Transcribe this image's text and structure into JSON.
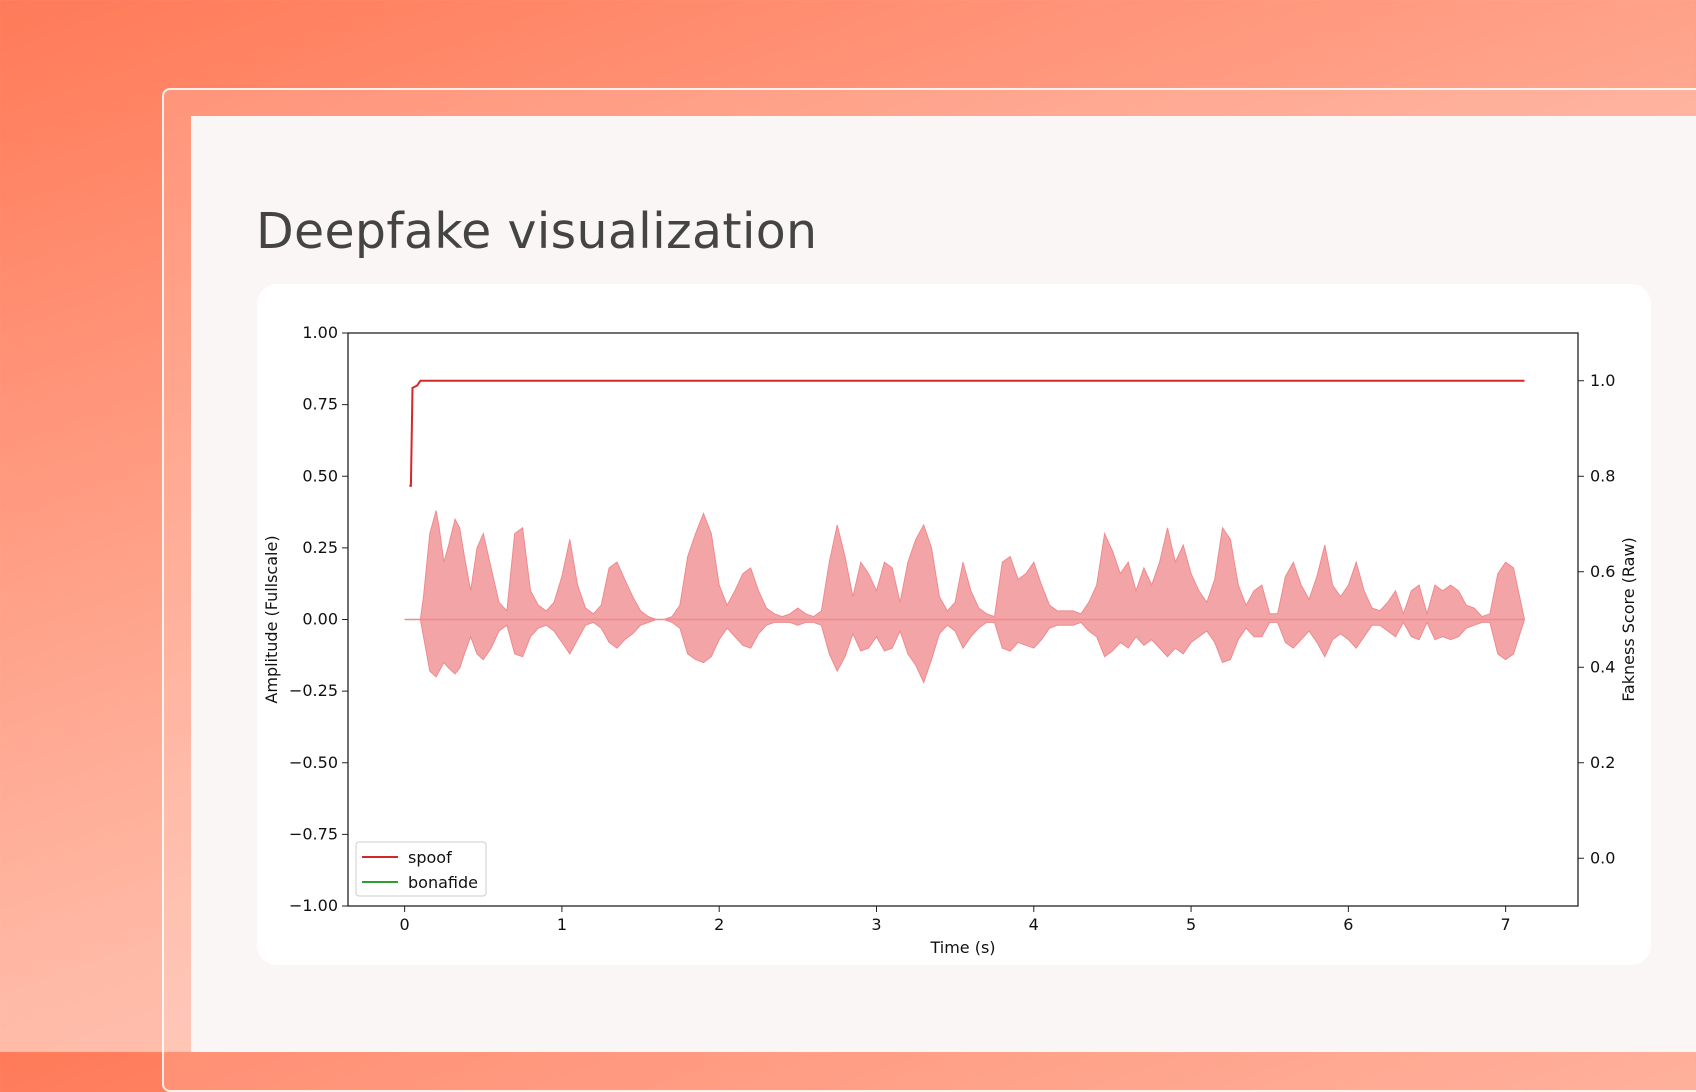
{
  "page": {
    "title": "Deepfake visualization"
  },
  "colors": {
    "spoof": "#d62728",
    "bonafide": "#2ca02c",
    "waveform": "#ef8a8e"
  },
  "chart_data": {
    "type": "line",
    "title": "",
    "xlabel": "Time (s)",
    "ylabel_left": "Amplitude (Fullscale)",
    "ylabel_right": "Fakness Score (Raw)",
    "xlim": [
      -0.36,
      7.46
    ],
    "ylim_left": [
      -1.0,
      1.0
    ],
    "ylim_right": [
      -0.1,
      1.1
    ],
    "x_ticks": [
      "0",
      "1",
      "2",
      "3",
      "4",
      "5",
      "6",
      "7"
    ],
    "y_left_ticks": [
      "1.00",
      "0.75",
      "0.50",
      "0.25",
      "0.00",
      "−0.25",
      "−0.50",
      "−0.75",
      "−1.00"
    ],
    "y_right_ticks": [
      "0.0",
      "0.2",
      "0.4",
      "0.6",
      "0.8",
      "1.0"
    ],
    "legend": {
      "position": "lower left",
      "entries": [
        "spoof",
        "bonafide"
      ]
    },
    "series": [
      {
        "name": "spoof",
        "axis": "right",
        "x": [
          0.03,
          0.04,
          0.05,
          0.08,
          0.1,
          1.0,
          2.0,
          3.0,
          4.0,
          5.0,
          6.0,
          7.0,
          7.12
        ],
        "values": [
          0.78,
          0.78,
          0.985,
          0.99,
          1.0,
          1.0,
          1.0,
          1.0,
          1.0,
          1.0,
          1.0,
          1.0,
          1.0
        ]
      },
      {
        "name": "bonafide",
        "axis": "right",
        "x": [],
        "values": []
      },
      {
        "name": "waveform",
        "axis": "left",
        "envelope_x": [
          0.0,
          0.1,
          0.12,
          0.16,
          0.2,
          0.22,
          0.25,
          0.28,
          0.32,
          0.35,
          0.38,
          0.42,
          0.46,
          0.5,
          0.55,
          0.6,
          0.65,
          0.7,
          0.75,
          0.8,
          0.85,
          0.9,
          0.95,
          1.0,
          1.05,
          1.1,
          1.15,
          1.2,
          1.25,
          1.3,
          1.35,
          1.4,
          1.45,
          1.5,
          1.55,
          1.6,
          1.65,
          1.7,
          1.75,
          1.8,
          1.85,
          1.9,
          1.95,
          2.0,
          2.05,
          2.1,
          2.15,
          2.2,
          2.25,
          2.3,
          2.35,
          2.4,
          2.45,
          2.5,
          2.55,
          2.6,
          2.65,
          2.7,
          2.75,
          2.8,
          2.85,
          2.9,
          2.95,
          3.0,
          3.05,
          3.1,
          3.15,
          3.2,
          3.25,
          3.3,
          3.35,
          3.4,
          3.45,
          3.5,
          3.55,
          3.6,
          3.65,
          3.7,
          3.75,
          3.8,
          3.85,
          3.9,
          3.95,
          4.0,
          4.05,
          4.1,
          4.15,
          4.2,
          4.25,
          4.3,
          4.35,
          4.4,
          4.45,
          4.5,
          4.55,
          4.6,
          4.65,
          4.7,
          4.75,
          4.8,
          4.85,
          4.9,
          4.95,
          5.0,
          5.05,
          5.1,
          5.15,
          5.2,
          5.25,
          5.3,
          5.35,
          5.4,
          5.45,
          5.5,
          5.55,
          5.6,
          5.65,
          5.7,
          5.75,
          5.8,
          5.85,
          5.9,
          5.95,
          6.0,
          6.05,
          6.1,
          6.15,
          6.2,
          6.25,
          6.3,
          6.35,
          6.4,
          6.45,
          6.5,
          6.55,
          6.6,
          6.65,
          6.7,
          6.75,
          6.8,
          6.85,
          6.9,
          6.95,
          7.0,
          7.05,
          7.12
        ],
        "envelope_top": [
          0.0,
          0.0,
          0.08,
          0.3,
          0.38,
          0.32,
          0.2,
          0.26,
          0.35,
          0.32,
          0.22,
          0.1,
          0.25,
          0.3,
          0.18,
          0.06,
          0.03,
          0.3,
          0.32,
          0.1,
          0.05,
          0.03,
          0.06,
          0.15,
          0.28,
          0.12,
          0.04,
          0.02,
          0.05,
          0.18,
          0.2,
          0.14,
          0.08,
          0.03,
          0.01,
          0.0,
          0.0,
          0.01,
          0.05,
          0.22,
          0.3,
          0.37,
          0.3,
          0.12,
          0.05,
          0.1,
          0.16,
          0.18,
          0.1,
          0.04,
          0.02,
          0.01,
          0.02,
          0.04,
          0.02,
          0.01,
          0.03,
          0.2,
          0.33,
          0.22,
          0.08,
          0.2,
          0.16,
          0.1,
          0.2,
          0.18,
          0.06,
          0.2,
          0.28,
          0.33,
          0.25,
          0.08,
          0.03,
          0.06,
          0.2,
          0.1,
          0.04,
          0.02,
          0.01,
          0.2,
          0.22,
          0.14,
          0.16,
          0.2,
          0.12,
          0.05,
          0.03,
          0.03,
          0.03,
          0.02,
          0.06,
          0.12,
          0.3,
          0.24,
          0.16,
          0.2,
          0.1,
          0.18,
          0.12,
          0.2,
          0.32,
          0.2,
          0.26,
          0.16,
          0.1,
          0.06,
          0.14,
          0.32,
          0.28,
          0.12,
          0.05,
          0.1,
          0.12,
          0.02,
          0.02,
          0.15,
          0.2,
          0.12,
          0.07,
          0.15,
          0.26,
          0.12,
          0.08,
          0.12,
          0.2,
          0.1,
          0.04,
          0.03,
          0.06,
          0.1,
          0.02,
          0.1,
          0.12,
          0.02,
          0.12,
          0.1,
          0.12,
          0.1,
          0.05,
          0.04,
          0.01,
          0.02,
          0.16,
          0.2,
          0.18,
          0.0
        ],
        "envelope_bottom": [
          0.0,
          0.0,
          -0.06,
          -0.18,
          -0.2,
          -0.18,
          -0.15,
          -0.17,
          -0.19,
          -0.17,
          -0.12,
          -0.06,
          -0.12,
          -0.14,
          -0.1,
          -0.04,
          -0.02,
          -0.12,
          -0.13,
          -0.06,
          -0.03,
          -0.02,
          -0.04,
          -0.08,
          -0.12,
          -0.07,
          -0.02,
          -0.01,
          -0.03,
          -0.08,
          -0.1,
          -0.07,
          -0.05,
          -0.02,
          -0.01,
          0.0,
          0.0,
          -0.01,
          -0.03,
          -0.12,
          -0.14,
          -0.15,
          -0.13,
          -0.07,
          -0.03,
          -0.06,
          -0.09,
          -0.1,
          -0.05,
          -0.02,
          -0.01,
          -0.01,
          -0.01,
          -0.02,
          -0.01,
          -0.01,
          -0.02,
          -0.12,
          -0.18,
          -0.13,
          -0.05,
          -0.11,
          -0.1,
          -0.06,
          -0.11,
          -0.1,
          -0.04,
          -0.12,
          -0.16,
          -0.22,
          -0.14,
          -0.05,
          -0.02,
          -0.04,
          -0.1,
          -0.06,
          -0.03,
          -0.01,
          -0.01,
          -0.1,
          -0.11,
          -0.08,
          -0.09,
          -0.1,
          -0.07,
          -0.03,
          -0.02,
          -0.02,
          -0.02,
          -0.01,
          -0.04,
          -0.06,
          -0.13,
          -0.11,
          -0.08,
          -0.1,
          -0.06,
          -0.09,
          -0.07,
          -0.1,
          -0.13,
          -0.1,
          -0.12,
          -0.08,
          -0.06,
          -0.04,
          -0.08,
          -0.15,
          -0.14,
          -0.07,
          -0.03,
          -0.06,
          -0.06,
          -0.01,
          -0.01,
          -0.08,
          -0.1,
          -0.07,
          -0.04,
          -0.08,
          -0.13,
          -0.07,
          -0.05,
          -0.07,
          -0.1,
          -0.06,
          -0.02,
          -0.02,
          -0.04,
          -0.06,
          -0.01,
          -0.06,
          -0.07,
          -0.01,
          -0.07,
          -0.06,
          -0.07,
          -0.06,
          -0.03,
          -0.02,
          -0.01,
          -0.01,
          -0.12,
          -0.14,
          -0.12,
          0.0
        ]
      }
    ]
  }
}
